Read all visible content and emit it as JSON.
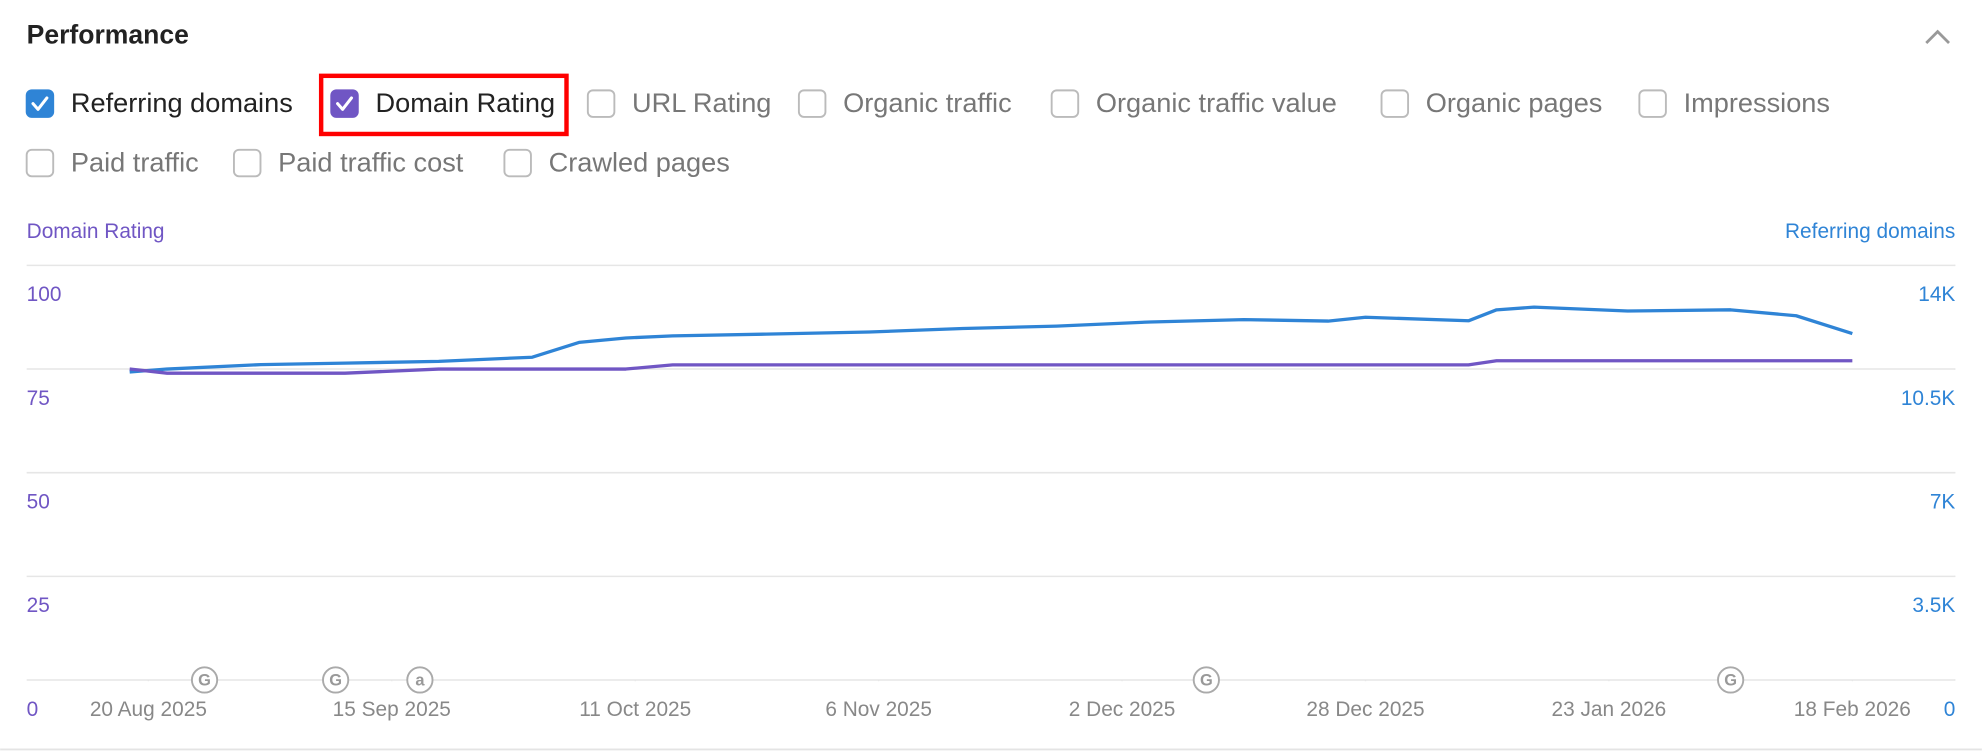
{
  "header": {
    "title": "Performance"
  },
  "metrics": [
    {
      "label": "Referring domains",
      "checked": true,
      "color": "#2f84d6"
    },
    {
      "label": "Domain Rating",
      "checked": true,
      "color": "#7056c4",
      "highlight": true
    },
    {
      "label": "URL Rating",
      "checked": false
    },
    {
      "label": "Organic traffic",
      "checked": false
    },
    {
      "label": "Organic traffic value",
      "checked": false
    },
    {
      "label": "Organic pages",
      "checked": false
    },
    {
      "label": "Impressions",
      "checked": false
    },
    {
      "label": "Paid traffic",
      "checked": false
    },
    {
      "label": "Paid traffic cost",
      "checked": false
    },
    {
      "label": "Crawled pages",
      "checked": false
    }
  ],
  "chart_data": {
    "type": "line",
    "x": [
      "2025-08-18",
      "2025-08-22",
      "2025-09-01",
      "2025-09-10",
      "2025-09-20",
      "2025-09-30",
      "2025-10-05",
      "2025-10-10",
      "2025-10-15",
      "2025-10-25",
      "2025-11-05",
      "2025-11-15",
      "2025-11-25",
      "2025-12-05",
      "2025-12-15",
      "2025-12-24",
      "2025-12-28",
      "2026-01-08",
      "2026-01-11",
      "2026-01-15",
      "2026-01-25",
      "2026-02-05",
      "2026-02-12",
      "2026-02-18"
    ],
    "xlim": [
      "2025-08-07",
      "2026-03-01"
    ],
    "xticks": [
      {
        "value": "2025-08-20",
        "label": "20 Aug 2025"
      },
      {
        "value": "2025-09-15",
        "label": "15 Sep 2025"
      },
      {
        "value": "2025-10-11",
        "label": "11 Oct 2025"
      },
      {
        "value": "2025-11-06",
        "label": "6 Nov 2025"
      },
      {
        "value": "2025-12-02",
        "label": "2 Dec 2025"
      },
      {
        "value": "2025-12-28",
        "label": "28 Dec 2025"
      },
      {
        "value": "2026-01-23",
        "label": "23 Jan 2026"
      },
      {
        "value": "2026-02-18",
        "label": "18 Feb 2026"
      }
    ],
    "ylim": [
      0,
      100
    ],
    "yticks": [
      0,
      25,
      50,
      75,
      100
    ],
    "y2lim": [
      0,
      14000
    ],
    "y2ticks": [
      0,
      {
        "value": 3500,
        "label": "3.5K"
      },
      {
        "value": 7000,
        "label": "7K"
      },
      {
        "value": 10500,
        "label": "10.5K"
      },
      {
        "value": 14000,
        "label": "14K"
      }
    ],
    "grid": true,
    "series": [
      {
        "name": "Domain Rating",
        "color": "#7056c4",
        "values": [
          75,
          74,
          74,
          74,
          75,
          75,
          75,
          75,
          76,
          76,
          76,
          76,
          76,
          76,
          76,
          76,
          76,
          76,
          77,
          77,
          77,
          77,
          77,
          77
        ]
      },
      {
        "name": "Referring domains",
        "color": "#2f84d6",
        "axis": "y2",
        "values": [
          10400,
          10500,
          10650,
          10700,
          10760,
          10900,
          11400,
          11550,
          11620,
          11680,
          11750,
          11870,
          11950,
          12090,
          12170,
          12120,
          12250,
          12130,
          12500,
          12590,
          12460,
          12500,
          12300,
          11700
        ]
      }
    ],
    "annotations": [
      {
        "x": "2025-08-26",
        "label": "G"
      },
      {
        "x": "2025-09-09",
        "label": "G"
      },
      {
        "x": "2025-09-18",
        "label": "a"
      },
      {
        "x": "2025-12-11",
        "label": "G"
      },
      {
        "x": "2026-02-05",
        "label": "G"
      }
    ]
  }
}
